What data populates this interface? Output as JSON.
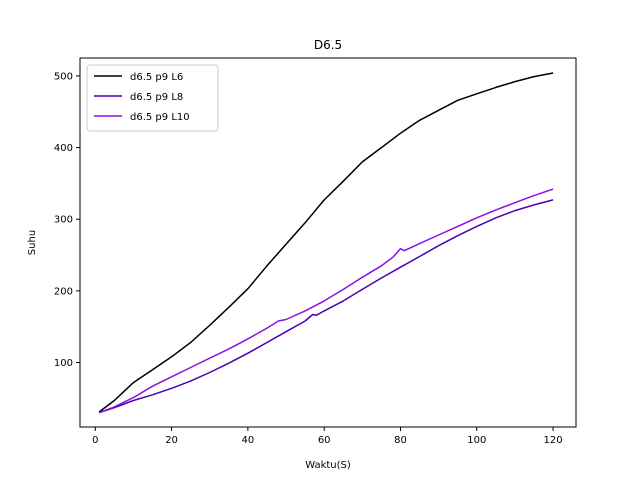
{
  "chart_data": {
    "type": "line",
    "title": "D6.5",
    "xlabel": "Waktu(S)",
    "ylabel": "Suhu",
    "xlim": [
      -4,
      126
    ],
    "ylim": [
      10,
      525
    ],
    "xticks": [
      0,
      20,
      40,
      60,
      80,
      100,
      120
    ],
    "yticks": [
      100,
      200,
      300,
      400,
      500
    ],
    "grid": false,
    "legend_position": "top-left",
    "series": [
      {
        "name": "d6.5 p9 L6",
        "color": "#000000",
        "x": [
          1,
          5,
          10,
          15,
          20,
          25,
          30,
          35,
          40,
          45,
          50,
          55,
          60,
          65,
          70,
          75,
          80,
          85,
          90,
          95,
          100,
          105,
          110,
          115,
          120
        ],
        "y": [
          31,
          47,
          72,
          90,
          108,
          128,
          152,
          177,
          203,
          235,
          265,
          295,
          327,
          353,
          380,
          400,
          420,
          438,
          452,
          466,
          475,
          484,
          492,
          499,
          504
        ]
      },
      {
        "name": "d6.5 p9 L8",
        "color": "#4b00b4",
        "x": [
          1,
          5,
          10,
          15,
          20,
          25,
          30,
          35,
          40,
          45,
          50,
          55,
          57,
          58,
          60,
          65,
          70,
          75,
          80,
          85,
          90,
          95,
          100,
          105,
          110,
          115,
          120
        ],
        "y": [
          30,
          37,
          47,
          55,
          64,
          74,
          86,
          99,
          113,
          128,
          143,
          158,
          167,
          166,
          172,
          186,
          202,
          218,
          233,
          248,
          263,
          277,
          290,
          302,
          312,
          320,
          327
        ]
      },
      {
        "name": "d6.5 p9 L10",
        "color": "#8a10e6",
        "x": [
          1,
          5,
          10,
          15,
          20,
          25,
          30,
          35,
          40,
          45,
          48,
          50,
          55,
          60,
          65,
          70,
          75,
          78,
          80,
          81,
          85,
          90,
          95,
          100,
          105,
          110,
          115,
          120
        ],
        "y": [
          30,
          38,
          51,
          67,
          80,
          93,
          106,
          119,
          133,
          148,
          158,
          160,
          172,
          186,
          202,
          219,
          235,
          247,
          259,
          256,
          266,
          278,
          290,
          302,
          313,
          323,
          333,
          342
        ]
      }
    ]
  }
}
